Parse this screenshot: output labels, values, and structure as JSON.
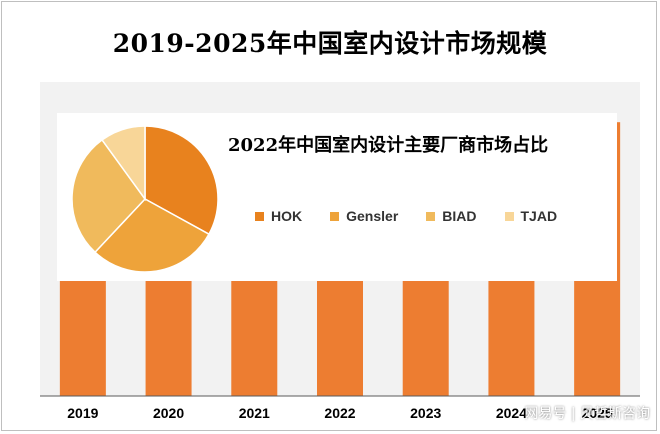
{
  "title": "2019-2025年中国室内设计市场规模",
  "chart_data": [
    {
      "type": "bar",
      "categories": [
        "2019",
        "2020",
        "2021",
        "2022",
        "2023",
        "2024",
        "2025"
      ],
      "values": [
        57,
        68,
        72,
        91,
        98,
        101,
        109
      ],
      "ylim": [
        0,
        125
      ],
      "grid": false,
      "bar_color": "#ED7D31",
      "axis_line_color": "#595959"
    },
    {
      "type": "pie",
      "title": "2022年中国室内设计主要厂商市场占比",
      "labels": [
        "HOK",
        "Gensler",
        "BIAD",
        "TJAD"
      ],
      "values": [
        33,
        29,
        28,
        10
      ],
      "colors": [
        "#E8821E",
        "#EEA33A",
        "#F0BA5C",
        "#F8D698"
      ],
      "legend": "right"
    }
  ],
  "watermark": "网易号 | 贝哲斯咨询"
}
